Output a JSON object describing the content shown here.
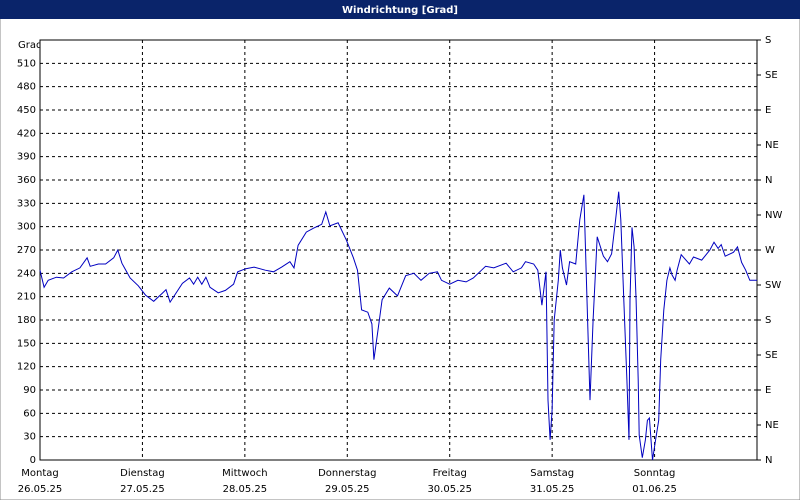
{
  "chart_data": {
    "type": "line",
    "title": "Windrichtung [Grad]",
    "y_label": "Grad",
    "xlim": [
      0,
      7
    ],
    "xticks": [
      {
        "value": 0,
        "label": "Montag",
        "date": "26.05.25"
      },
      {
        "value": 1,
        "label": "Dienstag",
        "date": "27.05.25"
      },
      {
        "value": 2,
        "label": "Mittwoch",
        "date": "28.05.25"
      },
      {
        "value": 3,
        "label": "Donnerstag",
        "date": "29.05.25"
      },
      {
        "value": 4,
        "label": "Freitag",
        "date": "30.05.25"
      },
      {
        "value": 5,
        "label": "Samstag",
        "date": "31.05.25"
      },
      {
        "value": 6,
        "label": "Sonntag",
        "date": "01.06.25"
      }
    ],
    "ylim": [
      0,
      540
    ],
    "yticks": [
      0,
      30,
      60,
      90,
      120,
      150,
      180,
      210,
      240,
      270,
      300,
      330,
      360,
      390,
      420,
      450,
      480,
      510
    ],
    "y2lim": [
      0,
      540
    ],
    "y2ticks": [
      {
        "value": 0,
        "label": "N"
      },
      {
        "value": 45,
        "label": "NE"
      },
      {
        "value": 90,
        "label": "E"
      },
      {
        "value": 135,
        "label": "SE"
      },
      {
        "value": 180,
        "label": "S"
      },
      {
        "value": 225,
        "label": "SW"
      },
      {
        "value": 270,
        "label": "W"
      },
      {
        "value": 315,
        "label": "NW"
      },
      {
        "value": 360,
        "label": "N"
      },
      {
        "value": 405,
        "label": "NE"
      },
      {
        "value": 450,
        "label": "E"
      },
      {
        "value": 495,
        "label": "SE"
      },
      {
        "value": 540,
        "label": "S"
      }
    ],
    "grid": true,
    "x": [
      0.0,
      0.04,
      0.08,
      0.16,
      0.23,
      0.31,
      0.39,
      0.46,
      0.49,
      0.57,
      0.64,
      0.72,
      0.76,
      0.8,
      0.88,
      0.96,
      1.03,
      1.11,
      1.19,
      1.23,
      1.27,
      1.31,
      1.39,
      1.46,
      1.5,
      1.54,
      1.58,
      1.62,
      1.66,
      1.74,
      1.81,
      1.89,
      1.93,
      2.01,
      2.09,
      2.2,
      2.28,
      2.36,
      2.44,
      2.48,
      2.52,
      2.6,
      2.67,
      2.75,
      2.79,
      2.83,
      2.91,
      2.99,
      3.06,
      3.1,
      3.14,
      3.2,
      3.24,
      3.26,
      3.3,
      3.34,
      3.41,
      3.49,
      3.57,
      3.65,
      3.72,
      3.8,
      3.88,
      3.92,
      4.0,
      4.08,
      4.16,
      4.23,
      4.31,
      4.35,
      4.43,
      4.55,
      4.62,
      4.7,
      4.74,
      4.82,
      4.86,
      4.9,
      4.94,
      4.96,
      4.98,
      5.0,
      5.02,
      5.06,
      5.08,
      5.1,
      5.14,
      5.17,
      5.23,
      5.27,
      5.31,
      5.34,
      5.37,
      5.4,
      5.44,
      5.5,
      5.54,
      5.58,
      5.62,
      5.65,
      5.67,
      5.7,
      5.73,
      5.75,
      5.76,
      5.78,
      5.8,
      5.82,
      5.84,
      5.85,
      5.88,
      5.91,
      5.93,
      5.95,
      5.98,
      6.01,
      6.04,
      6.06,
      6.09,
      6.12,
      6.15,
      6.17,
      6.2,
      6.22,
      6.26,
      6.34,
      6.38,
      6.46,
      6.54,
      6.58,
      6.62,
      6.65,
      6.69,
      6.77,
      6.81,
      6.85,
      6.89,
      6.93,
      7.0
    ],
    "series": [
      {
        "color": "#0000c0",
        "values": [
          244,
          222,
          231,
          235,
          234,
          242,
          247,
          260,
          249,
          252,
          252,
          260,
          270,
          253,
          234,
          224,
          212,
          204,
          214,
          219,
          203,
          211,
          227,
          234,
          226,
          235,
          226,
          235,
          222,
          215,
          218,
          226,
          242,
          246,
          248,
          244,
          242,
          248,
          255,
          247,
          276,
          293,
          298,
          303,
          319,
          301,
          305,
          283,
          260,
          244,
          193,
          190,
          175,
          129,
          167,
          206,
          221,
          211,
          237,
          240,
          231,
          240,
          242,
          231,
          226,
          231,
          229,
          234,
          244,
          249,
          247,
          253,
          242,
          247,
          255,
          252,
          244,
          199,
          242,
          77,
          26,
          64,
          180,
          231,
          270,
          247,
          225,
          255,
          252,
          309,
          341,
          206,
          77,
          180,
          287,
          262,
          255,
          265,
          309,
          345,
          309,
          206,
          103,
          26,
          206,
          299,
          274,
          206,
          103,
          32,
          3,
          26,
          51,
          54,
          0,
          26,
          51,
          129,
          193,
          231,
          247,
          238,
          231,
          244,
          264,
          252,
          261,
          257,
          270,
          280,
          272,
          277,
          262,
          267,
          274,
          254,
          244,
          231,
          231
        ]
      }
    ]
  }
}
